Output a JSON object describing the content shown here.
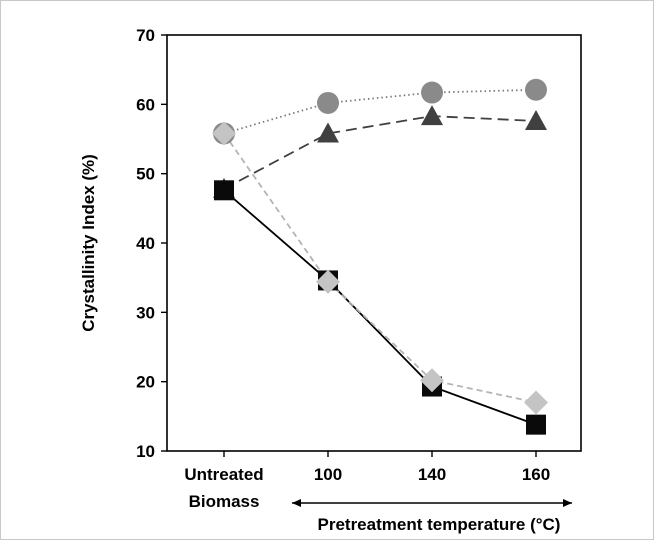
{
  "chart_data": {
    "type": "line",
    "title": "",
    "ylabel": "Crystallinity Index (%)",
    "xlabel": "Pretreatment temperature (°C)",
    "categories": [
      [
        "Untreated",
        "Biomass"
      ],
      [
        "100"
      ],
      [
        "140"
      ],
      [
        "160"
      ]
    ],
    "ylim": [
      10,
      70
    ],
    "yticks": [
      10,
      20,
      30,
      40,
      50,
      60,
      70
    ],
    "grid": false,
    "legend": "none",
    "series": [
      {
        "marker": "circle",
        "color": "#8a8a8a",
        "line_color": "#7a7a7a",
        "dash": "dotted",
        "values": [
          55.8,
          60.2,
          61.7,
          62.1
        ]
      },
      {
        "marker": "triangle",
        "color": "#404040",
        "line_color": "#404040",
        "dash": "long-dashed",
        "values": [
          47.8,
          55.8,
          58.3,
          57.6
        ]
      },
      {
        "marker": "square",
        "color": "#0a0a0a",
        "line_color": "#000000",
        "dash": "solid",
        "values": [
          47.6,
          34.6,
          19.3,
          13.8
        ]
      },
      {
        "marker": "diamond",
        "color": "#c4c4c4",
        "line_color": "#b4b4b4",
        "dash": "short-dashed",
        "values": [
          55.8,
          34.4,
          20.2,
          17.0
        ]
      }
    ]
  }
}
